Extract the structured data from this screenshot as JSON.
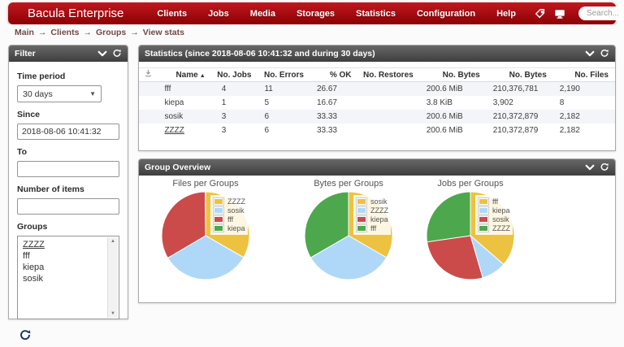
{
  "navbar": {
    "brand": "Bacula Enterprise",
    "items": [
      "Clients",
      "Jobs",
      "Media",
      "Storages",
      "Statistics",
      "Configuration",
      "Help"
    ],
    "search_placeholder": "Search...",
    "icons": [
      "tag-icon",
      "monitor-icon",
      "display-icon"
    ]
  },
  "breadcrumb": {
    "items": [
      "Main",
      "Clients",
      "Groups",
      "View stats"
    ],
    "separator": "→"
  },
  "filter_panel": {
    "title": "Filter",
    "time_period_label": "Time period",
    "time_period_value": "30 days",
    "since_label": "Since",
    "since_value": "2018-08-06 10:41:32",
    "to_label": "To",
    "to_value": "",
    "number_of_items_label": "Number of items",
    "number_of_items_value": "",
    "groups_label": "Groups",
    "groups_options": [
      {
        "label": "ZZZZ",
        "underline": true
      },
      {
        "label": "fff",
        "underline": false
      },
      {
        "label": "kiepa",
        "underline": false
      },
      {
        "label": "sosik",
        "underline": false
      }
    ]
  },
  "statistics_panel": {
    "title": "Statistics (since 2018-08-06 10:41:32 and during 30 days)",
    "table": {
      "columns": [
        "",
        "Name",
        "No. Jobs",
        "No. Errors",
        "% OK",
        "No. Restores",
        "No. Bytes",
        "No. Bytes",
        "No. Files"
      ],
      "sorted_column": "Name",
      "sort_direction": "asc",
      "rows": [
        {
          "cells": [
            "fff",
            "4",
            "11",
            "26.67",
            "",
            "200.6 MiB",
            "210,376,781",
            "2,190"
          ],
          "name_underline": false
        },
        {
          "cells": [
            "kiepa",
            "1",
            "5",
            "16.67",
            "",
            "3.8 KiB",
            "3,902",
            "8"
          ],
          "name_underline": false
        },
        {
          "cells": [
            "sosik",
            "3",
            "6",
            "33.33",
            "",
            "200.6 MiB",
            "210,372,879",
            "2,182"
          ],
          "name_underline": false
        },
        {
          "cells": [
            "ZZZZ",
            "3",
            "6",
            "33.33",
            "",
            "200.6 MiB",
            "210,372,879",
            "2,182"
          ],
          "name_underline": true
        }
      ]
    }
  },
  "overview_panel": {
    "title": "Group Overview"
  },
  "chart_data": [
    {
      "type": "pie",
      "title": "Files per Groups",
      "legend_position": "top-right",
      "series": [
        {
          "name": "ZZZZ",
          "value": 2182,
          "color": "#edc240"
        },
        {
          "name": "sosik",
          "value": 2182,
          "color": "#afd8f8"
        },
        {
          "name": "fff",
          "value": 2190,
          "color": "#cb4b4b"
        },
        {
          "name": "kiepa",
          "value": 8,
          "color": "#4da74d"
        }
      ]
    },
    {
      "type": "pie",
      "title": "Bytes per Groups",
      "legend_position": "top-right",
      "series": [
        {
          "name": "sosik",
          "value": 210372879,
          "color": "#edc240"
        },
        {
          "name": "ZZZZ",
          "value": 210372879,
          "color": "#afd8f8"
        },
        {
          "name": "kiepa",
          "value": 3902,
          "color": "#cb4b4b"
        },
        {
          "name": "fff",
          "value": 210376781,
          "color": "#4da74d"
        }
      ]
    },
    {
      "type": "pie",
      "title": "Jobs per Groups",
      "legend_position": "top-right",
      "series": [
        {
          "name": "fff",
          "value": 4,
          "color": "#edc240"
        },
        {
          "name": "kiepa",
          "value": 1,
          "color": "#afd8f8"
        },
        {
          "name": "sosik",
          "value": 3,
          "color": "#cb4b4b"
        },
        {
          "name": "ZZZZ",
          "value": 3,
          "color": "#4da74d"
        }
      ]
    }
  ],
  "colors": {
    "navbar_red_top": "#c0181f",
    "navbar_red_bottom": "#8c0004",
    "panel_header_gray": "#4c4c4c",
    "odd_row": "#f4f5f9",
    "pie_palette": [
      "#edc240",
      "#afd8f8",
      "#cb4b4b",
      "#4da74d"
    ]
  }
}
